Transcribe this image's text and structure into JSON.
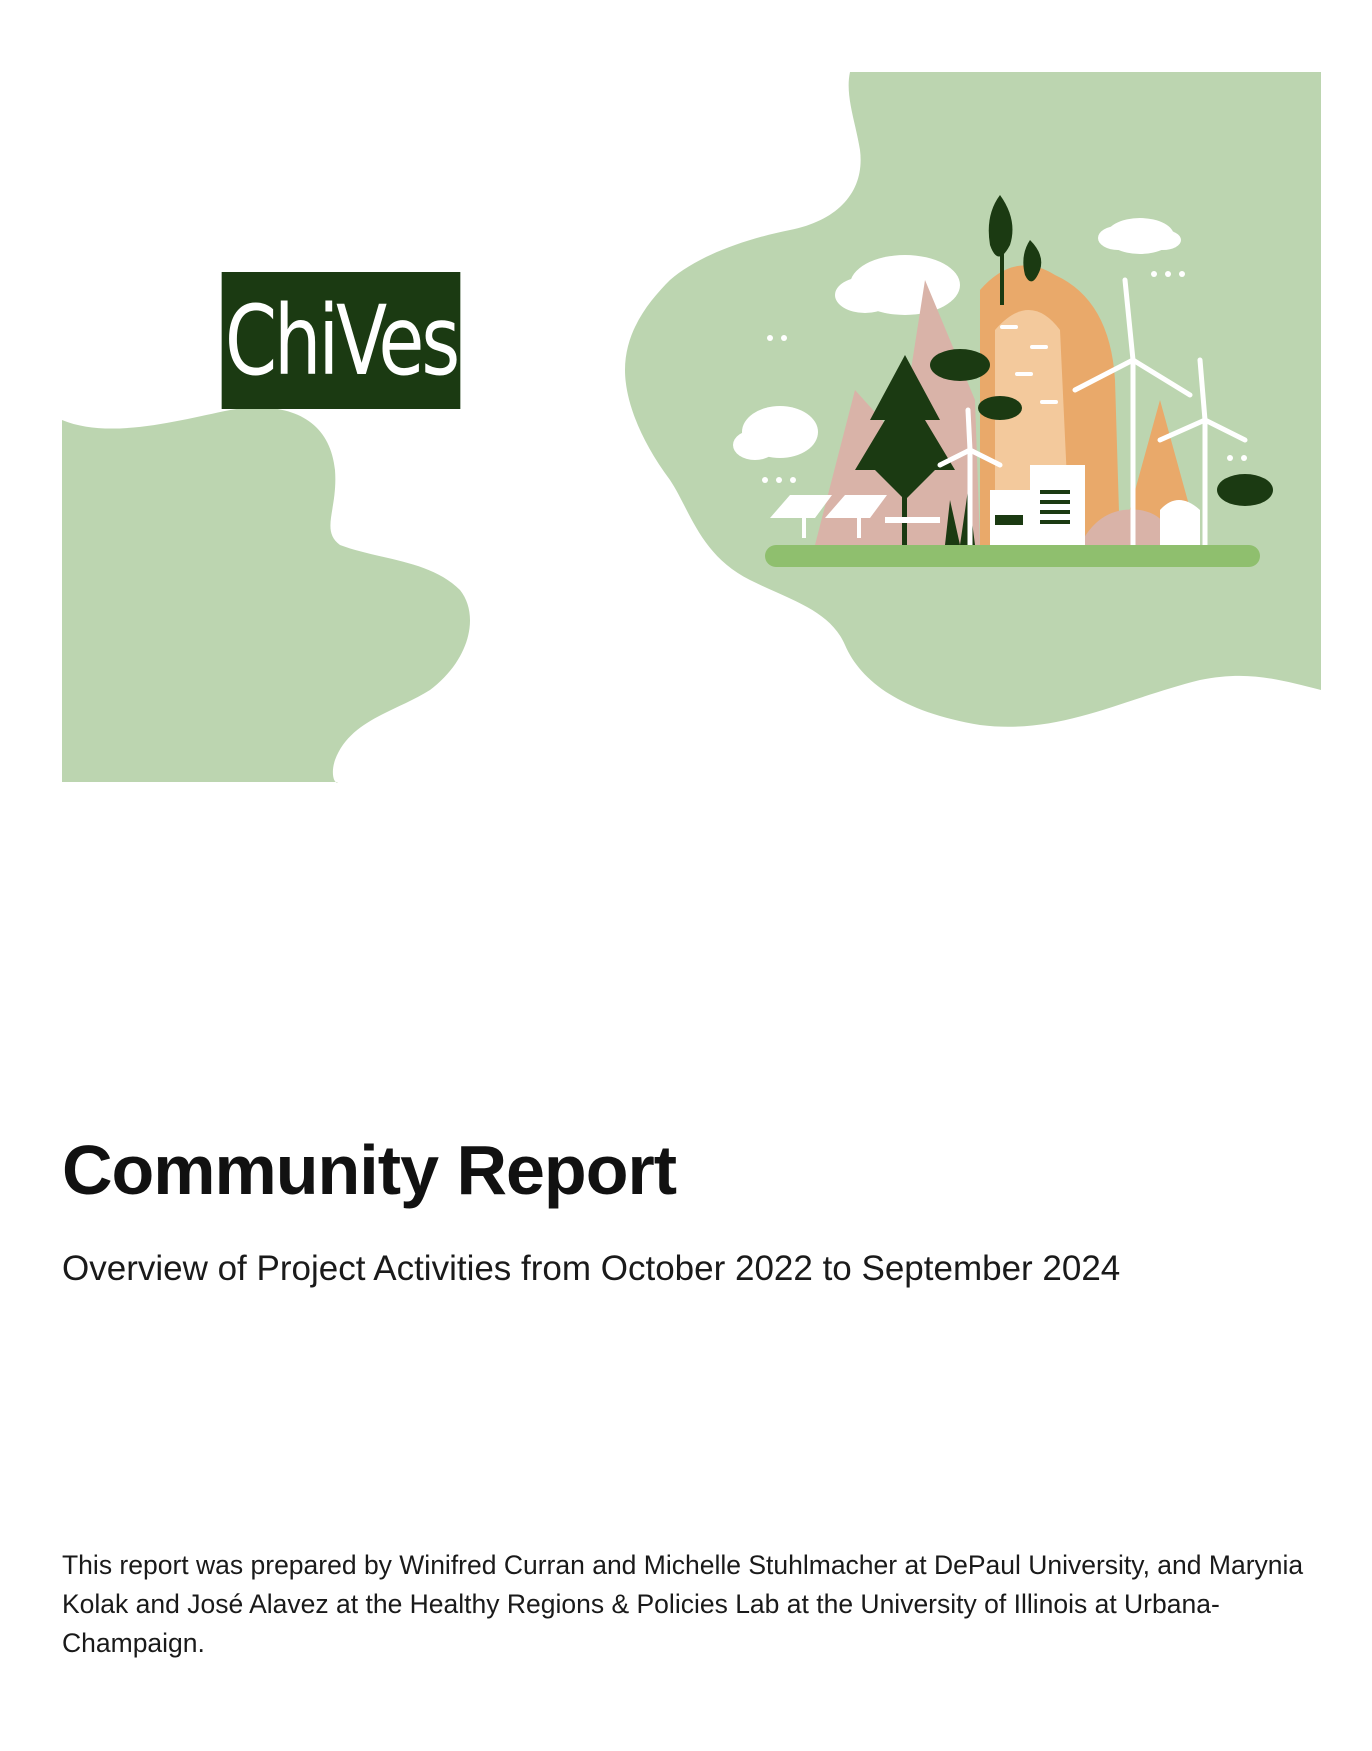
{
  "logo": {
    "text": "ChiVes"
  },
  "cover": {
    "title": "Community Report",
    "subtitle": "Overview of Project Activities from October 2022 to September 2024",
    "credits": "This report was prepared by Winifred Curran and Michelle Stuhlmacher at DePaul University, and Marynia Kolak and José Alavez at the Healthy Regions & Policies Lab at the University of Illinois at Urbana-Champaign."
  },
  "colors": {
    "blob": "#bcd5b0",
    "logo_bg": "#1b3a12",
    "dark_green": "#1b3a12",
    "orange": "#e9a96a",
    "peach": "#f3c99c",
    "pink": "#d9b3a8",
    "ground": "#8fbf6e"
  },
  "illustration": {
    "icon": "eco-city-illustration"
  }
}
